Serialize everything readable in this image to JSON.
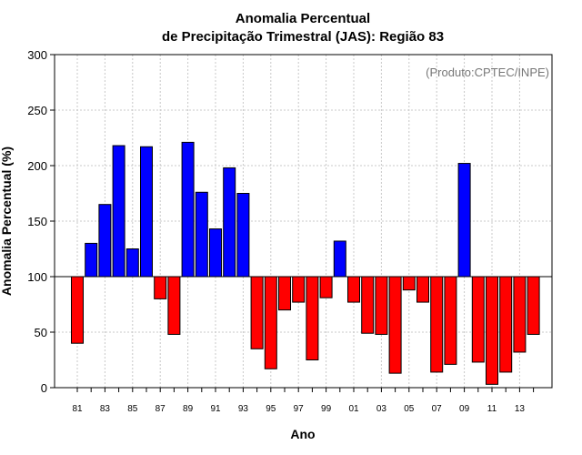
{
  "chart_data": {
    "type": "bar",
    "title_line1": "Anomalia Percentual",
    "title_line2": "de Precipitação Trimestral (JAS): Região 83",
    "xlabel": "Ano",
    "ylabel": "Anomalia Percentual (%)",
    "source": "(Produto:CPTEC/INPE)",
    "ylim": [
      0,
      300
    ],
    "yticks": [
      0,
      50,
      100,
      150,
      200,
      250,
      300
    ],
    "baseline": 100,
    "grid": true,
    "colors": {
      "above": "#0000ff",
      "below": "#ff0000"
    },
    "categories": [
      "81",
      "82",
      "83",
      "84",
      "85",
      "86",
      "87",
      "88",
      "89",
      "90",
      "91",
      "92",
      "93",
      "94",
      "95",
      "96",
      "97",
      "98",
      "99",
      "00",
      "01",
      "02",
      "03",
      "04",
      "05",
      "06",
      "07",
      "08",
      "09",
      "10",
      "11",
      "12",
      "13",
      "14"
    ],
    "tick_labels": [
      "81",
      "83",
      "85",
      "87",
      "89",
      "91",
      "93",
      "95",
      "97",
      "99",
      "01",
      "03",
      "05",
      "07",
      "09",
      "11",
      "13"
    ],
    "values": [
      40,
      130,
      165,
      218,
      125,
      217,
      80,
      48,
      221,
      176,
      143,
      198,
      175,
      35,
      17,
      70,
      77,
      25,
      81,
      132,
      77,
      49,
      48,
      13,
      88,
      77,
      14,
      21,
      202,
      23,
      3,
      14,
      32,
      48
    ]
  }
}
